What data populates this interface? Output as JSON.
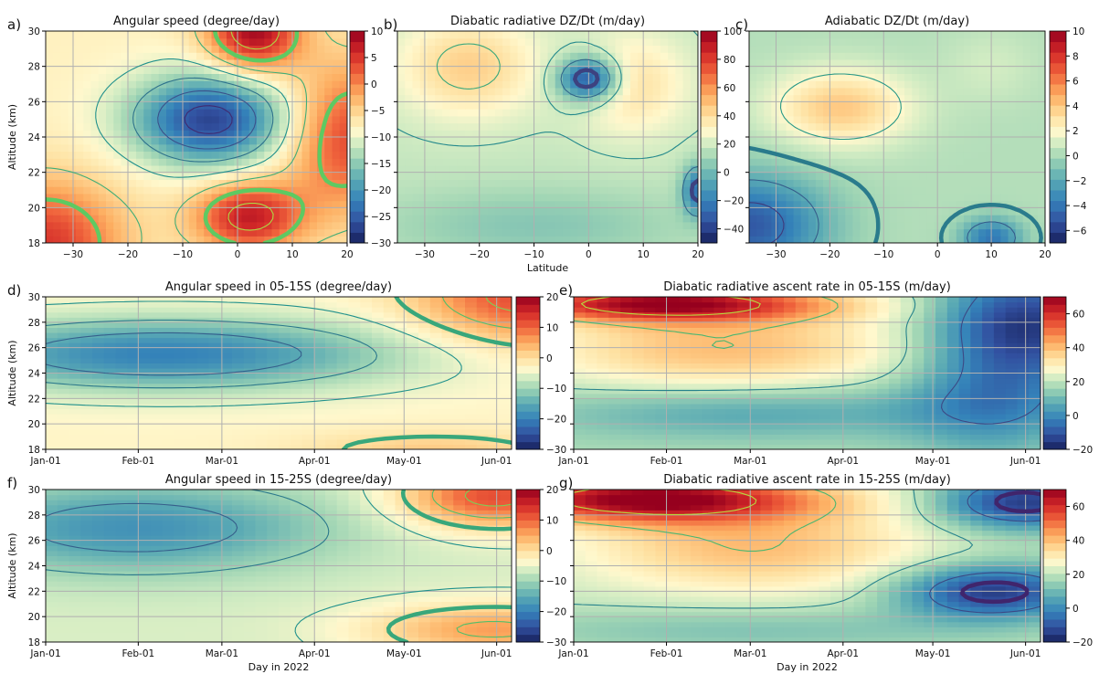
{
  "chart_data": [
    {
      "id": "a",
      "panel_label": "a)",
      "type": "heatmap",
      "title": "Angular speed (degree/day)",
      "xlabel": "",
      "ylabel": "Altitude (km)",
      "xlim": [
        -35,
        20
      ],
      "ylim": [
        18,
        30
      ],
      "xticks": [
        -30,
        -20,
        -10,
        0,
        10,
        20
      ],
      "xtick_labels": [
        "−30",
        "−20",
        "−10",
        "0",
        "10",
        "20"
      ],
      "yticks": [
        18,
        20,
        22,
        24,
        26,
        28,
        30
      ],
      "ytick_labels": [
        "18",
        "20",
        "22",
        "24",
        "26",
        "28",
        "30"
      ],
      "colorbar": {
        "ticks": [
          10,
          5,
          0,
          -5,
          -10,
          -15,
          -20,
          -25,
          -30
        ],
        "tick_labels": [
          "10",
          "5",
          "0",
          "−5",
          "−10",
          "−15",
          "−20",
          "−25",
          "−30"
        ],
        "range": [
          -30,
          10
        ]
      },
      "features": [
        {
          "x": -5,
          "y": 25,
          "value": -27,
          "sx": 10,
          "sy": 1.8
        },
        {
          "x": 3,
          "y": 30,
          "value": 9,
          "sx": 6,
          "sy": 1.6
        },
        {
          "x": 2,
          "y": 19.5,
          "value": 7,
          "sx": 7,
          "sy": 1.4
        },
        {
          "x": -35,
          "y": 18,
          "value": 5,
          "sx": 10,
          "sy": 2.5
        },
        {
          "x": 20,
          "y": 24,
          "value": 4,
          "sx": 8,
          "sy": 3
        }
      ],
      "background": -8,
      "contours": [
        -25,
        -20,
        -15,
        -10,
        -5,
        5
      ],
      "bold_contour": 0,
      "grid": true
    },
    {
      "id": "b",
      "panel_label": "b)",
      "type": "heatmap",
      "title": "Diabatic radiative DZ/Dt (m/day)",
      "xlabel": "Latitude",
      "ylabel": "",
      "xlim": [
        -35,
        20
      ],
      "ylim": [
        18,
        30
      ],
      "xticks": [
        -30,
        -20,
        -10,
        0,
        10,
        20
      ],
      "xtick_labels": [
        "−30",
        "−20",
        "−10",
        "0",
        "10",
        "20"
      ],
      "yticks": [
        18,
        20,
        22,
        24,
        26,
        28,
        30
      ],
      "ytick_labels": [],
      "colorbar": {
        "ticks": [
          100,
          80,
          60,
          40,
          20,
          0,
          -20,
          -40
        ],
        "tick_labels": [
          "100",
          "80",
          "60",
          "40",
          "20",
          "0",
          "−20",
          "−40"
        ],
        "range": [
          -50,
          100
        ]
      },
      "features": [
        {
          "x": 0,
          "y": 27.3,
          "value": -40,
          "sx": 4,
          "sy": 0.9
        },
        {
          "x": -22,
          "y": 28,
          "value": 45,
          "sx": 9,
          "sy": 2
        },
        {
          "x": 8,
          "y": 27,
          "value": 40,
          "sx": 7,
          "sy": 2
        },
        {
          "x": 20,
          "y": 21,
          "value": -25,
          "sx": 2,
          "sy": 1
        },
        {
          "x": -10,
          "y": 19,
          "value": 5,
          "sx": 20,
          "sy": 1.5
        }
      ],
      "background": 18,
      "contours": [
        0,
        20,
        40,
        60
      ],
      "bold_contour": -20,
      "grid": true
    },
    {
      "id": "c",
      "panel_label": "c)",
      "type": "heatmap",
      "title": "Adiabatic DZ/Dt (m/day)",
      "xlabel": "",
      "ylabel": "",
      "xlim": [
        -35,
        20
      ],
      "ylim": [
        18,
        30
      ],
      "xticks": [
        -30,
        -20,
        -10,
        0,
        10,
        20
      ],
      "xtick_labels": [
        "−30",
        "−20",
        "−10",
        "0",
        "10",
        "20"
      ],
      "yticks": [
        18,
        20,
        22,
        24,
        26,
        28,
        30
      ],
      "ytick_labels": [],
      "colorbar": {
        "ticks": [
          10,
          8,
          6,
          4,
          2,
          0,
          -2,
          -4,
          -6
        ],
        "tick_labels": [
          "10",
          "8",
          "6",
          "4",
          "2",
          "0",
          "−2",
          "−4",
          "−6"
        ],
        "range": [
          -7,
          10
        ]
      },
      "features": [
        {
          "x": -18,
          "y": 25.7,
          "value": 4,
          "sx": 9,
          "sy": 1.5
        },
        {
          "x": -35,
          "y": 19,
          "value": -5,
          "sx": 10,
          "sy": 2
        },
        {
          "x": 10,
          "y": 18.3,
          "value": -4,
          "sx": 4,
          "sy": 0.8
        },
        {
          "x": 10,
          "y": 28,
          "value": 1,
          "sx": 6,
          "sy": 1.5
        }
      ],
      "background": 0.3,
      "contours": [
        2,
        -2,
        -4
      ],
      "bold_contour": 0,
      "grid": true
    },
    {
      "id": "d",
      "panel_label": "d)",
      "type": "heatmap",
      "title": "Angular speed in 05-15S (degree/day)",
      "xlabel": "",
      "ylabel": "Altitude (km)",
      "xlim": [
        0,
        156
      ],
      "ylim": [
        18,
        30
      ],
      "xticks": [
        0,
        31,
        59,
        90,
        120,
        151
      ],
      "xtick_labels": [
        "Jan-01",
        "Feb-01",
        "Mar-01",
        "Apr-01",
        "May-01",
        "Jun-01"
      ],
      "yticks": [
        18,
        20,
        22,
        24,
        26,
        28,
        30
      ],
      "ytick_labels": [
        "18",
        "20",
        "22",
        "24",
        "26",
        "28",
        "30"
      ],
      "colorbar": {
        "ticks": [
          20,
          10,
          0,
          -10,
          -20,
          -30
        ],
        "tick_labels": [
          "20",
          "10",
          "0",
          "−10",
          "−20",
          "−30"
        ],
        "range": [
          -30,
          20
        ]
      },
      "features": [
        {
          "x": 40,
          "y": 25.5,
          "value": -20,
          "sx": 55,
          "sy": 2
        },
        {
          "x": 160,
          "y": 30,
          "value": 12,
          "sx": 25,
          "sy": 2.5
        },
        {
          "x": 130,
          "y": 18,
          "value": 2,
          "sx": 30,
          "sy": 1
        }
      ],
      "background": -3,
      "contours": [
        -15,
        -10,
        -5,
        5,
        10
      ],
      "bold_contour": 0,
      "grid": true
    },
    {
      "id": "e",
      "panel_label": "e)",
      "type": "heatmap",
      "title": "Diabatic radiative ascent rate in 05-15S (m/day)",
      "xlabel": "",
      "ylabel": "",
      "xlim": [
        0,
        156
      ],
      "ylim": [
        18,
        30
      ],
      "xticks": [
        0,
        31,
        59,
        90,
        120,
        151
      ],
      "xtick_labels": [
        "Jan-01",
        "Feb-01",
        "Mar-01",
        "Apr-01",
        "May-01",
        "Jun-01"
      ],
      "yticks": [
        18,
        20,
        22,
        24,
        26,
        28,
        30
      ],
      "ytick_labels": [],
      "colorbar": {
        "ticks": [
          60,
          40,
          20,
          0,
          -20
        ],
        "tick_labels": [
          "60",
          "40",
          "20",
          "0",
          "−20"
        ],
        "range": [
          -20,
          70
        ]
      },
      "features": [
        {
          "x": 30,
          "y": 29.5,
          "value": 65,
          "sx": 40,
          "sy": 1
        },
        {
          "x": 50,
          "y": 26,
          "value": 40,
          "sx": 45,
          "sy": 2.5
        },
        {
          "x": 150,
          "y": 28,
          "value": -15,
          "sx": 20,
          "sy": 3
        },
        {
          "x": 140,
          "y": 22,
          "value": 0,
          "sx": 20,
          "sy": 3
        },
        {
          "x": 60,
          "y": 21,
          "value": 5,
          "sx": 50,
          "sy": 1.5
        }
      ],
      "background": 18,
      "contours": [
        0,
        20,
        40,
        60
      ],
      "bold_contour": -20,
      "grid": true
    },
    {
      "id": "f",
      "panel_label": "f)",
      "type": "heatmap",
      "title": "Angular speed in 15-25S (degree/day)",
      "xlabel": "Day in 2022",
      "ylabel": "Altitude (km)",
      "xlim": [
        0,
        156
      ],
      "ylim": [
        18,
        30
      ],
      "xticks": [
        0,
        31,
        59,
        90,
        120,
        151
      ],
      "xtick_labels": [
        "Jan-01",
        "Feb-01",
        "Mar-01",
        "Apr-01",
        "May-01",
        "Jun-01"
      ],
      "yticks": [
        18,
        20,
        22,
        24,
        26,
        28,
        30
      ],
      "ytick_labels": [
        "18",
        "20",
        "22",
        "24",
        "26",
        "28",
        "30"
      ],
      "colorbar": {
        "ticks": [
          20,
          10,
          0,
          -10,
          -20,
          -30
        ],
        "tick_labels": [
          "20",
          "10",
          "0",
          "−10",
          "−20",
          "−30"
        ],
        "range": [
          -30,
          20
        ]
      },
      "features": [
        {
          "x": 30,
          "y": 27,
          "value": -18,
          "sx": 45,
          "sy": 2.5
        },
        {
          "x": 150,
          "y": 29.5,
          "value": 12,
          "sx": 22,
          "sy": 1.8
        },
        {
          "x": 150,
          "y": 19,
          "value": 6,
          "sx": 30,
          "sy": 1.5
        }
      ],
      "background": -6,
      "contours": [
        -15,
        -10,
        -5,
        5,
        10
      ],
      "bold_contour": 0,
      "grid": true
    },
    {
      "id": "g",
      "panel_label": "g)",
      "type": "heatmap",
      "title": "Diabatic radiative ascent rate in 15-25S (m/day)",
      "xlabel": "Day in 2022",
      "ylabel": "",
      "xlim": [
        0,
        156
      ],
      "ylim": [
        18,
        30
      ],
      "xticks": [
        0,
        31,
        59,
        90,
        120,
        151
      ],
      "xtick_labels": [
        "Jan-01",
        "Feb-01",
        "Mar-01",
        "Apr-01",
        "May-01",
        "Jun-01"
      ],
      "yticks": [
        18,
        20,
        22,
        24,
        26,
        28,
        30
      ],
      "ytick_labels": [],
      "colorbar": {
        "ticks": [
          60,
          40,
          20,
          0,
          -20
        ],
        "tick_labels": [
          "60",
          "40",
          "20",
          "0",
          "−20"
        ],
        "range": [
          -20,
          70
        ]
      },
      "features": [
        {
          "x": 25,
          "y": 29.3,
          "value": 70,
          "sx": 40,
          "sy": 1.3
        },
        {
          "x": 60,
          "y": 25.5,
          "value": 40,
          "sx": 40,
          "sy": 2.5
        },
        {
          "x": 150,
          "y": 29,
          "value": -15,
          "sx": 20,
          "sy": 1.5
        },
        {
          "x": 140,
          "y": 22,
          "value": -15,
          "sx": 22,
          "sy": 1.5
        },
        {
          "x": 60,
          "y": 19,
          "value": 12,
          "sx": 60,
          "sy": 1.2
        }
      ],
      "background": 20,
      "contours": [
        0,
        20,
        40,
        60
      ],
      "bold_contour": -10,
      "grid": true
    }
  ]
}
